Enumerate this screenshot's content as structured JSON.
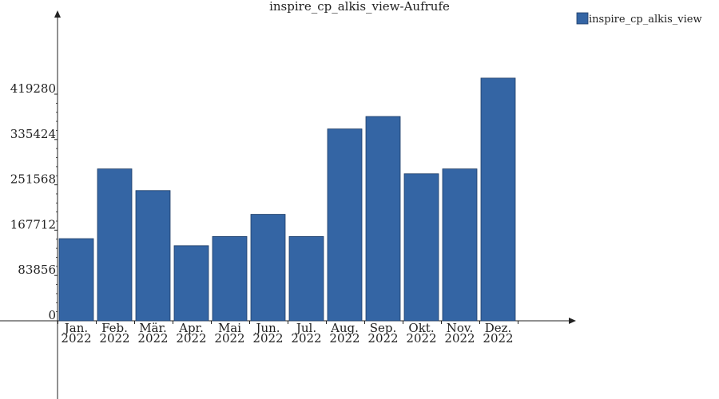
{
  "chart_data": {
    "type": "bar",
    "title": "inspire_cp_alkis_view-Aufrufe",
    "xlabel": "",
    "ylabel": "",
    "categories": [
      [
        "Jan.",
        "2022"
      ],
      [
        "Feb.",
        "2022"
      ],
      [
        "Mär.",
        "2022"
      ],
      [
        "Apr.",
        "2022"
      ],
      [
        "Mai",
        "2022"
      ],
      [
        "Jun.",
        "2022"
      ],
      [
        "Jul.",
        "2022"
      ],
      [
        "Aug.",
        "2022"
      ],
      [
        "Sep.",
        "2022"
      ],
      [
        "Okt.",
        "2022"
      ],
      [
        "Nov.",
        "2022"
      ],
      [
        "Dez.",
        "2022"
      ]
    ],
    "series": [
      {
        "name": "inspire_cp_alkis_view",
        "color": "#3465a4",
        "values": [
          152000,
          281000,
          241000,
          139000,
          156000,
          197000,
          156000,
          355000,
          378000,
          272000,
          281000,
          449000
        ]
      }
    ],
    "yticks": [
      "0",
      "83856",
      "167712",
      "251568",
      "335424",
      "419280"
    ],
    "ylim": [
      0,
      419280
    ],
    "legend_position": "top-right",
    "grid": false
  }
}
